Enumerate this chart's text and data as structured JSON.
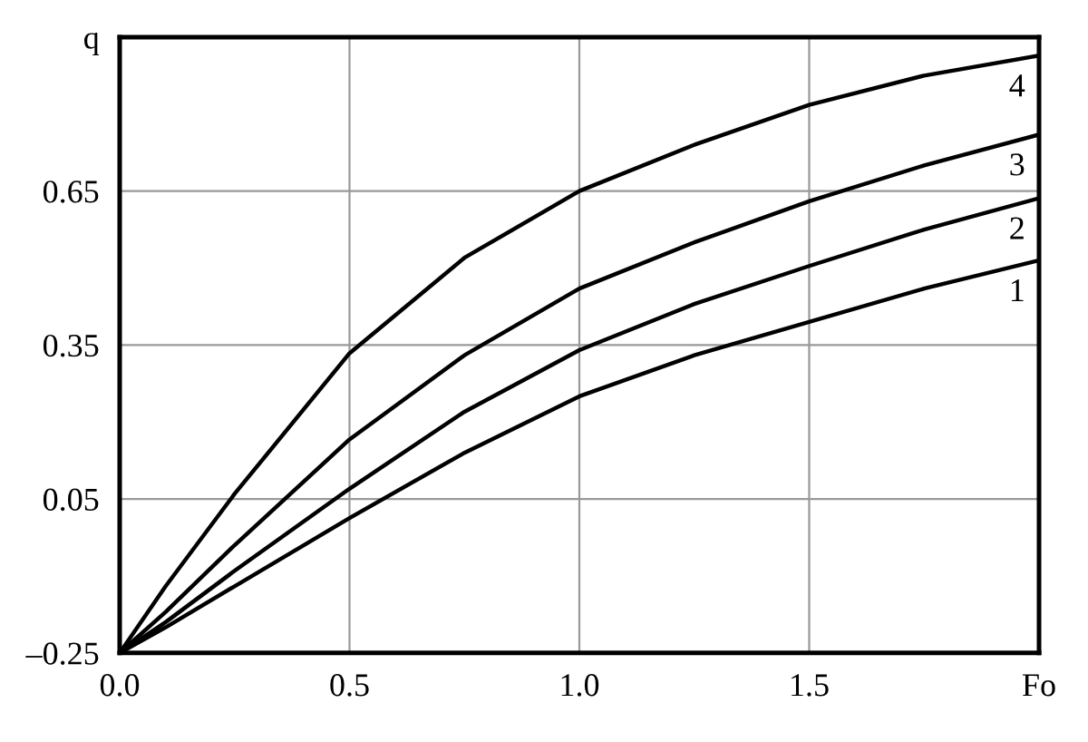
{
  "chart_data": {
    "type": "line",
    "x": [
      0,
      0.1,
      0.25,
      0.5,
      0.75,
      1.0,
      1.25,
      1.5,
      1.75,
      2.0
    ],
    "series": [
      {
        "name": "1",
        "color": "#000000",
        "values": [
          -0.25,
          -0.2,
          -0.12,
          0.013,
          0.14,
          0.25,
          0.33,
          0.395,
          0.46,
          0.515
        ]
      },
      {
        "name": "2",
        "color": "#000000",
        "values": [
          -0.25,
          -0.19,
          -0.09,
          0.07,
          0.22,
          0.34,
          0.43,
          0.504,
          0.575,
          0.636
        ]
      },
      {
        "name": "3",
        "color": "#000000",
        "values": [
          -0.25,
          -0.17,
          -0.04,
          0.166,
          0.33,
          0.46,
          0.55,
          0.63,
          0.7,
          0.76
        ]
      },
      {
        "name": "4",
        "color": "#000000",
        "values": [
          -0.25,
          -0.12,
          0.06,
          0.334,
          0.52,
          0.65,
          0.74,
          0.818,
          0.875,
          0.914
        ]
      }
    ],
    "xlim": [
      0,
      2.0
    ],
    "ylim": [
      -0.25,
      0.95
    ],
    "xticks": [
      {
        "value": 0,
        "label": "0.0"
      },
      0.5,
      {
        "value": 1.0,
        "label": "1.0"
      },
      1.5,
      {
        "value": 2.0,
        "label": "Fo"
      }
    ],
    "yticks": [
      {
        "value": -0.25,
        "label": "–0.25"
      },
      0.05,
      0.35,
      0.65,
      {
        "value": 0.95,
        "label": "q"
      }
    ],
    "grid": true,
    "legend": false,
    "marker": "none",
    "line_style": "solid"
  }
}
